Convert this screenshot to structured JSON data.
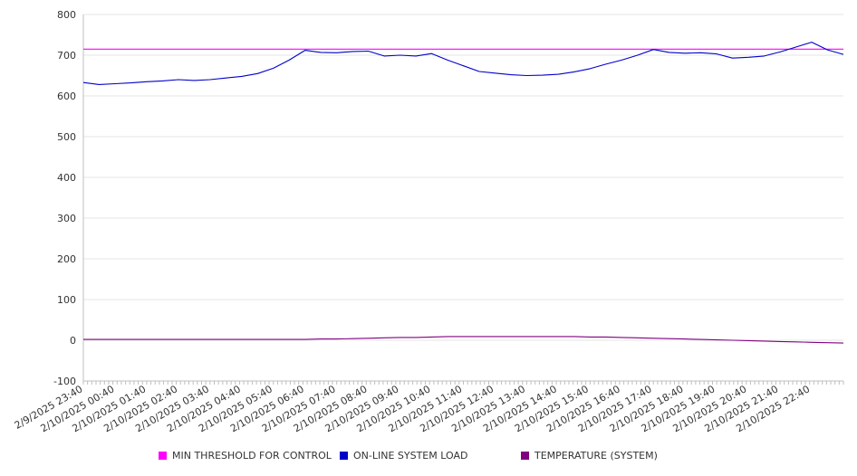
{
  "chart_data": {
    "type": "line",
    "ylim": [
      -100,
      800
    ],
    "yticks": [
      800,
      700,
      600,
      500,
      400,
      300,
      200,
      100,
      0,
      -100
    ],
    "grid": true,
    "legend_position": "bottom",
    "x_tick_labels": [
      "2/9/2025 23:40",
      "2/10/2025 00:40",
      "2/10/2025 01:40",
      "2/10/2025 02:40",
      "2/10/2025 03:40",
      "2/10/2025 04:40",
      "2/10/2025 05:40",
      "2/10/2025 06:40",
      "2/10/2025 07:40",
      "2/10/2025 08:40",
      "2/10/2025 09:40",
      "2/10/2025 10:40",
      "2/10/2025 11:40",
      "2/10/2025 12:40",
      "2/10/2025 13:40",
      "2/10/2025 14:40",
      "2/10/2025 15:40",
      "2/10/2025 16:40",
      "2/10/2025 17:40",
      "2/10/2025 18:40",
      "2/10/2025 19:40",
      "2/10/2025 20:40",
      "2/10/2025 21:40",
      "2/10/2025 22:40"
    ],
    "x": [
      "2/9/2025 23:40",
      "2/10/2025 00:10",
      "2/10/2025 00:40",
      "2/10/2025 01:10",
      "2/10/2025 01:40",
      "2/10/2025 02:10",
      "2/10/2025 02:40",
      "2/10/2025 03:10",
      "2/10/2025 03:40",
      "2/10/2025 04:10",
      "2/10/2025 04:40",
      "2/10/2025 05:10",
      "2/10/2025 05:40",
      "2/10/2025 06:10",
      "2/10/2025 06:40",
      "2/10/2025 07:10",
      "2/10/2025 07:40",
      "2/10/2025 08:10",
      "2/10/2025 08:40",
      "2/10/2025 09:10",
      "2/10/2025 09:40",
      "2/10/2025 10:10",
      "2/10/2025 10:40",
      "2/10/2025 11:10",
      "2/10/2025 11:40",
      "2/10/2025 12:10",
      "2/10/2025 12:40",
      "2/10/2025 13:10",
      "2/10/2025 13:40",
      "2/10/2025 14:10",
      "2/10/2025 14:40",
      "2/10/2025 15:10",
      "2/10/2025 15:40",
      "2/10/2025 16:10",
      "2/10/2025 16:40",
      "2/10/2025 17:10",
      "2/10/2025 17:40",
      "2/10/2025 18:10",
      "2/10/2025 18:40",
      "2/10/2025 19:10",
      "2/10/2025 19:40",
      "2/10/2025 20:10",
      "2/10/2025 20:40",
      "2/10/2025 21:10",
      "2/10/2025 21:40",
      "2/10/2025 22:10",
      "2/10/2025 22:40",
      "2/10/2025 23:10",
      "2/10/2025 23:40"
    ],
    "series": [
      {
        "name": "MIN THRESHOLD FOR CONTROL",
        "color": "#ff00ff",
        "values": [
          715,
          715,
          715,
          715,
          715,
          715,
          715,
          715,
          715,
          715,
          715,
          715,
          715,
          715,
          715,
          715,
          715,
          715,
          715,
          715,
          715,
          715,
          715,
          715,
          715,
          715,
          715,
          715,
          715,
          715,
          715,
          715,
          715,
          715,
          715,
          715,
          715,
          715,
          715,
          715,
          715,
          715,
          715,
          715,
          715,
          715,
          715,
          715,
          715
        ]
      },
      {
        "name": "ON-LINE SYSTEM LOAD",
        "color": "#0000cc",
        "values": [
          633,
          628,
          630,
          632,
          635,
          637,
          640,
          638,
          640,
          644,
          648,
          655,
          668,
          688,
          712,
          707,
          706,
          709,
          710,
          698,
          700,
          698,
          704,
          688,
          674,
          660,
          656,
          652,
          650,
          651,
          653,
          659,
          667,
          678,
          688,
          700,
          714,
          707,
          705,
          706,
          703,
          693,
          695,
          698,
          708,
          720,
          732,
          713,
          702
        ]
      },
      {
        "name": "TEMPERATURE (SYSTEM)",
        "color": "#800080",
        "values": [
          2,
          2,
          2,
          2,
          2,
          2,
          2,
          2,
          2,
          2,
          2,
          2,
          2,
          2,
          2,
          3,
          3,
          4,
          5,
          6,
          7,
          7,
          8,
          9,
          9,
          9,
          9,
          9,
          9,
          9,
          9,
          9,
          8,
          8,
          7,
          6,
          5,
          4,
          3,
          2,
          1,
          0,
          -1,
          -2,
          -3,
          -4,
          -5,
          -6,
          -7
        ]
      }
    ]
  }
}
